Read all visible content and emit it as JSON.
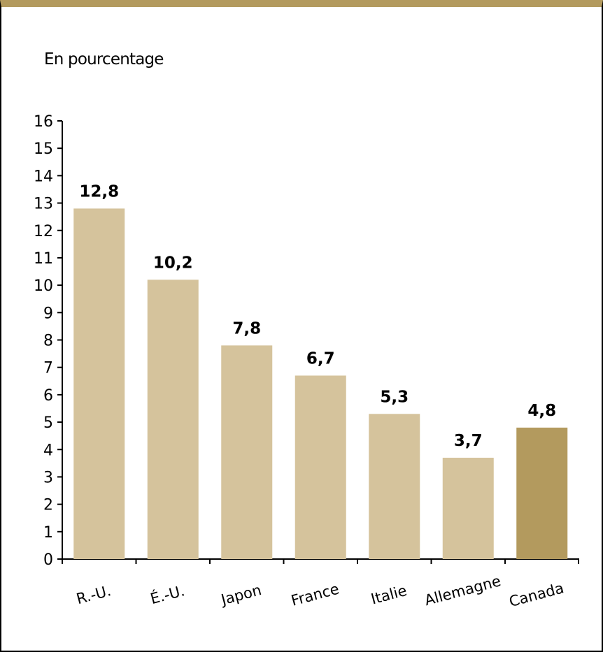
{
  "chart_data": {
    "type": "bar",
    "ylabel": "En pourcentage",
    "categories": [
      "R.-U.",
      "É.-U.",
      "Japon",
      "France",
      "Italie",
      "Allemagne",
      "Canada"
    ],
    "values": [
      12.8,
      10.2,
      7.8,
      6.7,
      5.3,
      3.7,
      4.8
    ],
    "value_labels": [
      "12,8",
      "10,2",
      "7,8",
      "6,7",
      "5,3",
      "3,7",
      "4,8"
    ],
    "ylim": [
      0,
      16
    ],
    "yticks": [
      "0",
      "1",
      "2",
      "3",
      "4",
      "5",
      "6",
      "7",
      "8",
      "9",
      "10",
      "11",
      "12",
      "13",
      "14",
      "15",
      "16"
    ],
    "grid": false,
    "legend": "none",
    "colors": {
      "bar": "#d5c39c",
      "highlight_bar": "#b39a5e",
      "top_band": "#b39a5e"
    },
    "highlight_category": "Canada"
  }
}
